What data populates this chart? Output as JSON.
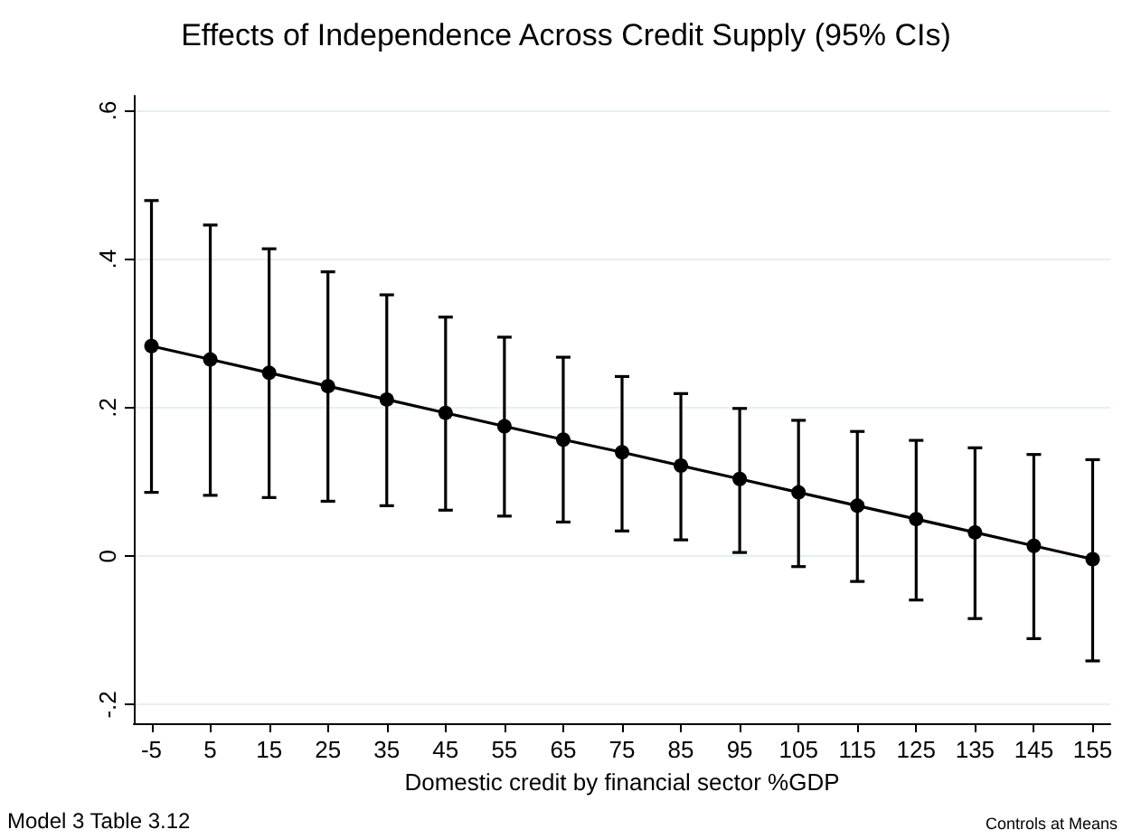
{
  "chart_data": {
    "type": "line",
    "title": "Effects of Independence Across Credit Supply (95% CIs)",
    "xlabel": "Domestic credit by financial sector %GDP",
    "x": [
      -5,
      5,
      15,
      25,
      35,
      45,
      55,
      65,
      75,
      85,
      95,
      105,
      115,
      125,
      135,
      145,
      155
    ],
    "series": [
      {
        "color": "#000000",
        "values": [
          0.283,
          0.265,
          0.247,
          0.229,
          0.211,
          0.193,
          0.175,
          0.157,
          0.14,
          0.122,
          0.104,
          0.086,
          0.068,
          0.05,
          0.032,
          0.014,
          -0.004
        ],
        "errors": [
          [
            0.086,
            0.479
          ],
          [
            0.082,
            0.446
          ],
          [
            0.079,
            0.414
          ],
          [
            0.074,
            0.383
          ],
          [
            0.068,
            0.352
          ],
          [
            0.062,
            0.322
          ],
          [
            0.054,
            0.295
          ],
          [
            0.046,
            0.268
          ],
          [
            0.034,
            0.242
          ],
          [
            0.022,
            0.219
          ],
          [
            0.005,
            0.199
          ],
          [
            -0.014,
            0.183
          ],
          [
            -0.034,
            0.168
          ],
          [
            -0.059,
            0.156
          ],
          [
            -0.084,
            0.146
          ],
          [
            -0.111,
            0.137
          ],
          [
            -0.141,
            0.13
          ]
        ]
      }
    ],
    "xlim": [
      -8,
      158
    ],
    "xticks": [
      -5,
      5,
      15,
      25,
      35,
      45,
      55,
      65,
      75,
      85,
      95,
      105,
      115,
      125,
      135,
      145,
      155
    ],
    "ylim": [
      -0.225,
      0.62
    ],
    "yticks": [
      {
        "value": -0.2,
        "label": "-.2"
      },
      {
        "value": 0,
        "label": "0"
      },
      {
        "value": 0.2,
        "label": ".2"
      },
      {
        "value": 0.4,
        "label": ".4"
      },
      {
        "value": 0.6,
        "label": ".6"
      }
    ],
    "grid": "y",
    "marker": "circle",
    "line_style": "solid",
    "annotations": [
      "Model 3 Table 3.12",
      "Controls at Means"
    ]
  }
}
